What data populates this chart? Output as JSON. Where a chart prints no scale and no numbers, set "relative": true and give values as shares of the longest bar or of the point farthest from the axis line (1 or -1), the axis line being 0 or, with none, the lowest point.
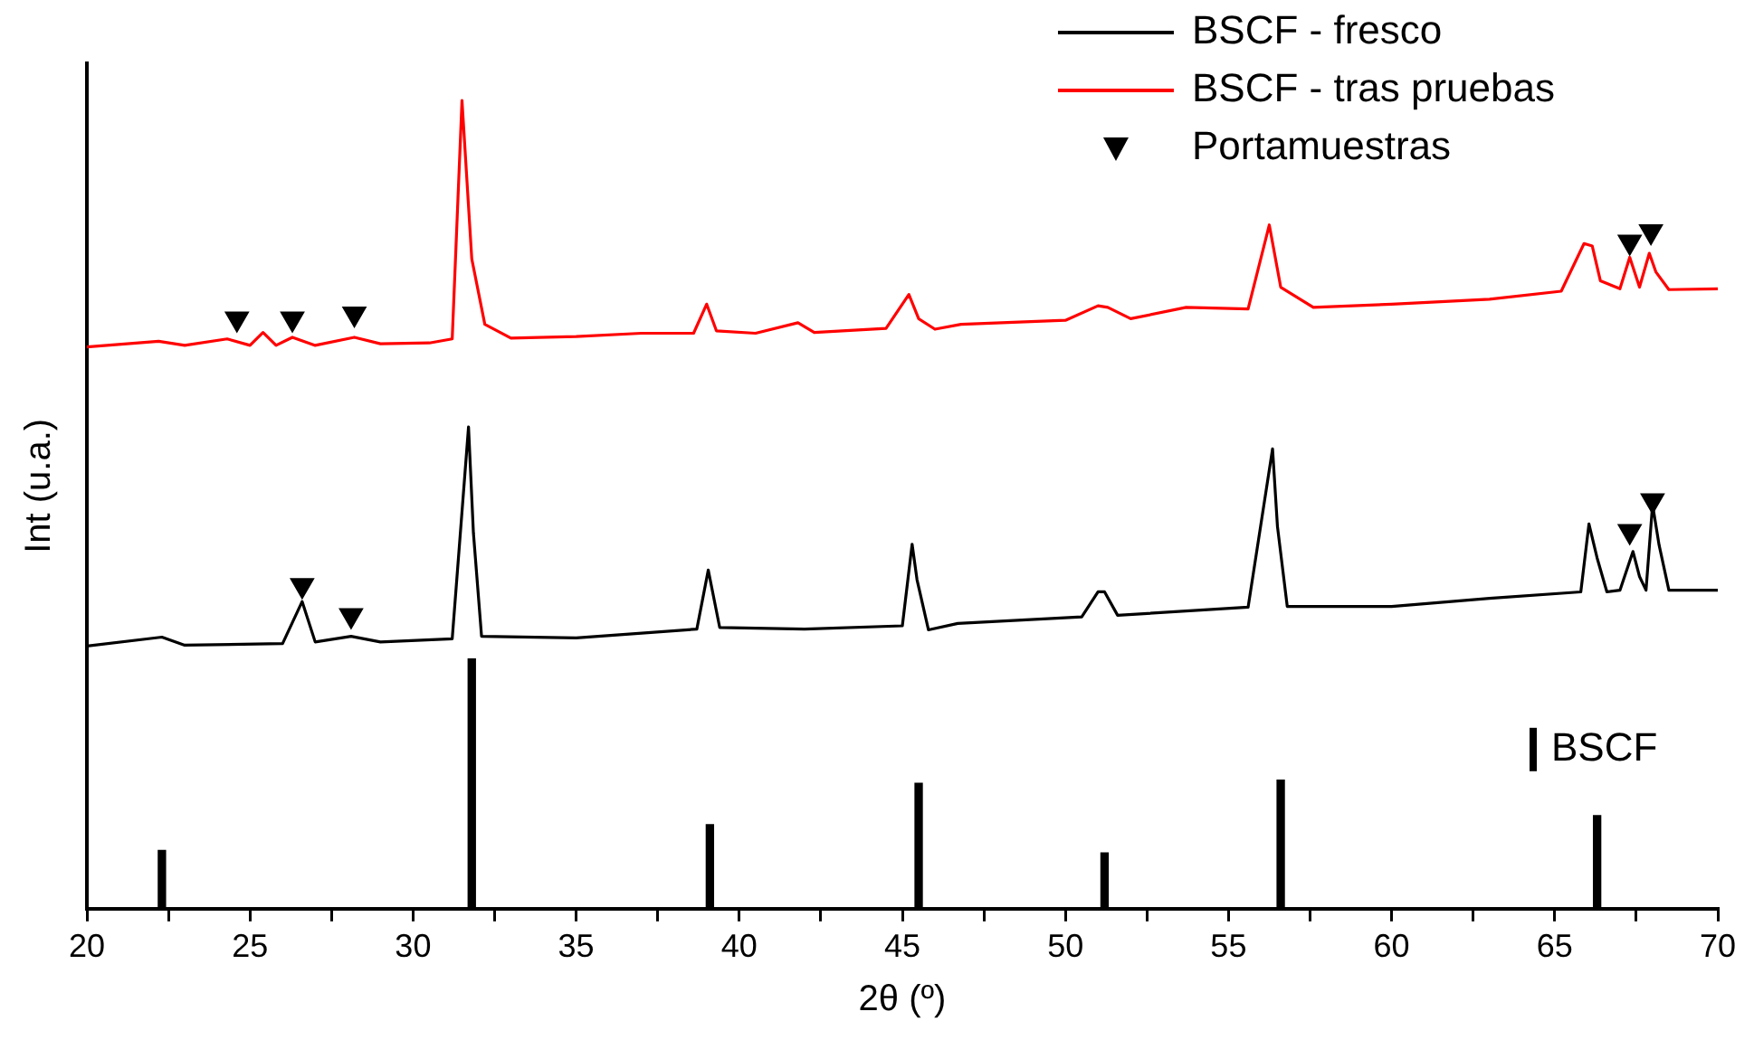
{
  "chart_data": {
    "type": "line",
    "relative": true,
    "xlabel": "2θ (º)",
    "ylabel": "Int (u.a.)",
    "xlim": [
      20,
      70
    ],
    "xticks": [
      20,
      {
        "value": 22.5,
        "label": null
      },
      25,
      {
        "value": 27.5,
        "label": null
      },
      30,
      {
        "value": 32.5,
        "label": null
      },
      35,
      {
        "value": 37.5,
        "label": null
      },
      40,
      {
        "value": 42.5,
        "label": null
      },
      45,
      {
        "value": 47.5,
        "label": null
      },
      50,
      {
        "value": 52.5,
        "label": null
      },
      55,
      {
        "value": 57.5,
        "label": null
      },
      60,
      {
        "value": 62.5,
        "label": null
      },
      65,
      {
        "value": 67.5,
        "label": null
      },
      70
    ],
    "tick_labels": "x",
    "legend": "top right",
    "series": [
      {
        "name": "BSCF - fresco",
        "color": "#000000",
        "x": [
          20,
          22.3,
          23,
          26,
          26.6,
          27,
          28.1,
          29,
          31.2,
          31.7,
          31.85,
          32.1,
          35,
          38.7,
          39.05,
          39.4,
          42,
          45,
          45.3,
          45.45,
          45.8,
          46.7,
          50.5,
          51,
          51.2,
          51.6,
          55.6,
          56.35,
          56.5,
          56.8,
          60,
          63,
          65.8,
          66.05,
          66.3,
          66.6,
          67,
          67.4,
          67.6,
          67.8,
          68,
          68.2,
          68.5,
          70
        ],
        "values": [
          0.325,
          0.336,
          0.326,
          0.328,
          0.38,
          0.33,
          0.337,
          0.33,
          0.334,
          0.596,
          0.465,
          0.337,
          0.335,
          0.346,
          0.419,
          0.348,
          0.346,
          0.35,
          0.451,
          0.407,
          0.345,
          0.353,
          0.361,
          0.392,
          0.392,
          0.363,
          0.373,
          0.569,
          0.473,
          0.374,
          0.374,
          0.384,
          0.392,
          0.476,
          0.434,
          0.392,
          0.394,
          0.442,
          0.411,
          0.394,
          0.5,
          0.45,
          0.394,
          0.394
        ]
      },
      {
        "name": "BSCF - tras pruebas",
        "color": "#ff0000",
        "x": [
          20,
          22.2,
          23,
          24.3,
          25,
          25.4,
          25.8,
          26.3,
          27,
          28.2,
          29,
          30.5,
          31.2,
          31.5,
          31.8,
          32.2,
          33,
          35,
          37,
          38.6,
          39,
          39.3,
          40.5,
          41.8,
          42.3,
          44.5,
          45.2,
          45.5,
          46,
          46.8,
          50,
          51,
          51.3,
          52,
          53.7,
          55.6,
          56.25,
          56.6,
          57.6,
          60,
          63,
          65.2,
          65.9,
          66.15,
          66.4,
          67,
          67.3,
          67.6,
          67.9,
          68.1,
          68.5,
          70
        ],
        "values": [
          0.695,
          0.702,
          0.697,
          0.705,
          0.697,
          0.713,
          0.697,
          0.707,
          0.697,
          0.707,
          0.699,
          0.7,
          0.705,
          1,
          0.804,
          0.723,
          0.706,
          0.708,
          0.712,
          0.712,
          0.748,
          0.715,
          0.712,
          0.725,
          0.713,
          0.718,
          0.76,
          0.73,
          0.717,
          0.723,
          0.728,
          0.746,
          0.744,
          0.73,
          0.744,
          0.742,
          0.846,
          0.769,
          0.744,
          0.748,
          0.754,
          0.764,
          0.823,
          0.82,
          0.777,
          0.767,
          0.806,
          0.769,
          0.811,
          0.788,
          0.766,
          0.767
        ]
      },
      {
        "name": "Portamuestras",
        "type": "scatter",
        "color": "#000000",
        "marker": "triangle",
        "x": [
          24.6,
          26.3,
          28.2,
          67.3,
          67.95,
          26.6,
          28.1,
          67.3,
          68
        ],
        "values": [
          0.73,
          0.73,
          0.736,
          0.825,
          0.838,
          0.4,
          0.363,
          0.467,
          0.505
        ]
      },
      {
        "name": "BSCF",
        "type": "bar",
        "color": "#000000",
        "x": [
          22.3,
          31.8,
          39.1,
          45.5,
          51.2,
          56.6,
          66.3
        ],
        "values": [
          0.072,
          0.309,
          0.104,
          0.155,
          0.069,
          0.159,
          0.115
        ]
      }
    ]
  }
}
